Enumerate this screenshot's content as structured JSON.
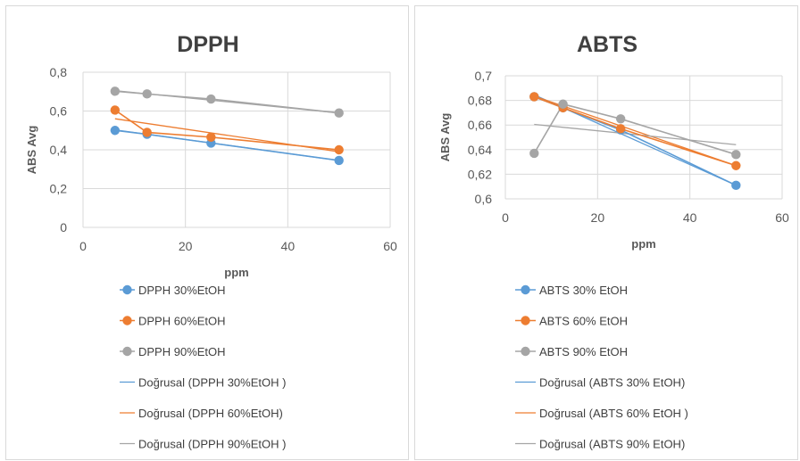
{
  "chart_data": [
    {
      "type": "line",
      "title": "DPPH",
      "xlabel": "ppm",
      "ylabel": "ABS Avg",
      "xlim": [
        0,
        60
      ],
      "xticks": [
        "0",
        "20",
        "40",
        "60"
      ],
      "ylim": [
        0,
        0.8
      ],
      "yticks": [
        "0",
        "0,2",
        "0,4",
        "0,6",
        "0,8"
      ],
      "grid": true,
      "legend_position": "bottom",
      "x": [
        6.25,
        12.5,
        25,
        50
      ],
      "series": [
        {
          "name": "DPPH 30%EtOH",
          "values": [
            0.5,
            0.48,
            0.435,
            0.345
          ],
          "color": "#5b9bd5"
        },
        {
          "name": "DPPH 60%EtOH",
          "values": [
            0.605,
            0.49,
            0.465,
            0.4
          ],
          "color": "#ed7d31"
        },
        {
          "name": "DPPH 90%EtOH",
          "values": [
            0.702,
            0.688,
            0.662,
            0.59
          ],
          "color": "#a5a5a5"
        }
      ],
      "trendlines": [
        {
          "name": "Doğrusal (DPPH 30%EtOH )",
          "color": "#5b9bd5",
          "start": [
            6.25,
            0.503
          ],
          "end": [
            50,
            0.345
          ]
        },
        {
          "name": "Doğrusal (DPPH 60%EtOH)",
          "color": "#ed7d31",
          "start": [
            6.25,
            0.56
          ],
          "end": [
            50,
            0.39
          ]
        },
        {
          "name": "Doğrusal (DPPH 90%EtOH )",
          "color": "#a5a5a5",
          "start": [
            6.25,
            0.705
          ],
          "end": [
            50,
            0.59
          ]
        }
      ]
    },
    {
      "type": "line",
      "title": "ABTS",
      "xlabel": "ppm",
      "ylabel": "ABS Avg",
      "xlim": [
        0,
        60
      ],
      "xticks": [
        "0",
        "20",
        "40",
        "60"
      ],
      "ylim": [
        0.6,
        0.7
      ],
      "yticks": [
        "0,6",
        "0,62",
        "0,64",
        "0,66",
        "0,68",
        "0,7"
      ],
      "grid": true,
      "legend_position": "bottom",
      "x": [
        6.25,
        12.5,
        25,
        50
      ],
      "series": [
        {
          "name": "ABTS 30% EtOH",
          "values": [
            0.683,
            0.674,
            0.656,
            0.611
          ],
          "color": "#5b9bd5"
        },
        {
          "name": "ABTS 60% EtOH",
          "values": [
            0.683,
            0.674,
            0.657,
            0.627
          ],
          "color": "#ed7d31"
        },
        {
          "name": "ABTS 90% EtOH",
          "values": [
            0.637,
            0.677,
            0.665,
            0.636
          ],
          "color": "#a5a5a5"
        }
      ],
      "trendlines": [
        {
          "name": "Doğrusal (ABTS 30% EtOH)",
          "color": "#5b9bd5",
          "start": [
            6.25,
            0.6845
          ],
          "end": [
            50,
            0.611
          ]
        },
        {
          "name": "Doğrusal (ABTS 60% EtOH )",
          "color": "#ed7d31",
          "start": [
            6.25,
            0.6835
          ],
          "end": [
            50,
            0.627
          ]
        },
        {
          "name": "Doğrusal (ABTS 90% EtOH)",
          "color": "#a5a5a5",
          "start": [
            6.25,
            0.6605
          ],
          "end": [
            50,
            0.644
          ]
        }
      ]
    }
  ]
}
